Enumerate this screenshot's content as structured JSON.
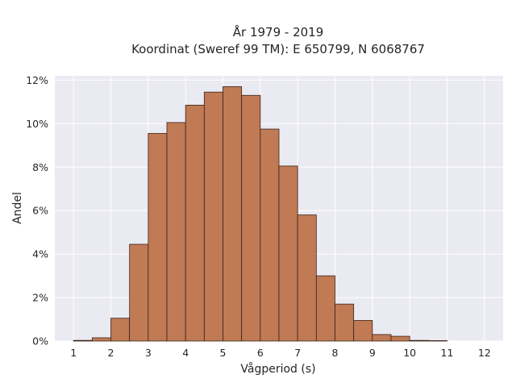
{
  "chart_data": {
    "type": "bar",
    "title_line1": "År 1979 - 2019",
    "title_line2": "Koordinat (Sweref 99 TM): E 650799, N 6068767",
    "xlabel": "Vågperiod (s)",
    "ylabel": "Andel",
    "xlim": [
      0.5,
      12.5
    ],
    "ylim": [
      0,
      12.2
    ],
    "bin_width": 0.5,
    "x_ticks": [
      {
        "value": 1,
        "label": "1"
      },
      {
        "value": 2,
        "label": "2"
      },
      {
        "value": 3,
        "label": "3"
      },
      {
        "value": 4,
        "label": "4"
      },
      {
        "value": 5,
        "label": "5"
      },
      {
        "value": 6,
        "label": "6"
      },
      {
        "value": 7,
        "label": "7"
      },
      {
        "value": 8,
        "label": "8"
      },
      {
        "value": 9,
        "label": "9"
      },
      {
        "value": 10,
        "label": "10"
      },
      {
        "value": 11,
        "label": "11"
      },
      {
        "value": 12,
        "label": "12"
      }
    ],
    "y_ticks": [
      {
        "value": 0,
        "label": "0%"
      },
      {
        "value": 2,
        "label": "2%"
      },
      {
        "value": 4,
        "label": "4%"
      },
      {
        "value": 6,
        "label": "6%"
      },
      {
        "value": 8,
        "label": "8%"
      },
      {
        "value": 10,
        "label": "10%"
      },
      {
        "value": 12,
        "label": "12%"
      }
    ],
    "bins": [
      {
        "x0": 1.0,
        "value": 0.03
      },
      {
        "x0": 1.5,
        "value": 0.15
      },
      {
        "x0": 2.0,
        "value": 1.05
      },
      {
        "x0": 2.5,
        "value": 4.45
      },
      {
        "x0": 3.0,
        "value": 9.55
      },
      {
        "x0": 3.5,
        "value": 10.05
      },
      {
        "x0": 4.0,
        "value": 10.85
      },
      {
        "x0": 4.5,
        "value": 11.45
      },
      {
        "x0": 5.0,
        "value": 11.7
      },
      {
        "x0": 5.5,
        "value": 11.3
      },
      {
        "x0": 6.0,
        "value": 9.75
      },
      {
        "x0": 6.5,
        "value": 8.05
      },
      {
        "x0": 7.0,
        "value": 5.8
      },
      {
        "x0": 7.5,
        "value": 3.0
      },
      {
        "x0": 8.0,
        "value": 1.7
      },
      {
        "x0": 8.5,
        "value": 0.95
      },
      {
        "x0": 9.0,
        "value": 0.3
      },
      {
        "x0": 9.5,
        "value": 0.22
      },
      {
        "x0": 10.0,
        "value": 0.03
      },
      {
        "x0": 10.5,
        "value": 0.02
      }
    ],
    "grid": true,
    "bar_color": "#c07a54",
    "bar_edge_color": "#3b2418",
    "background_color": "#eaeaf2",
    "grid_color": "#ffffff"
  }
}
